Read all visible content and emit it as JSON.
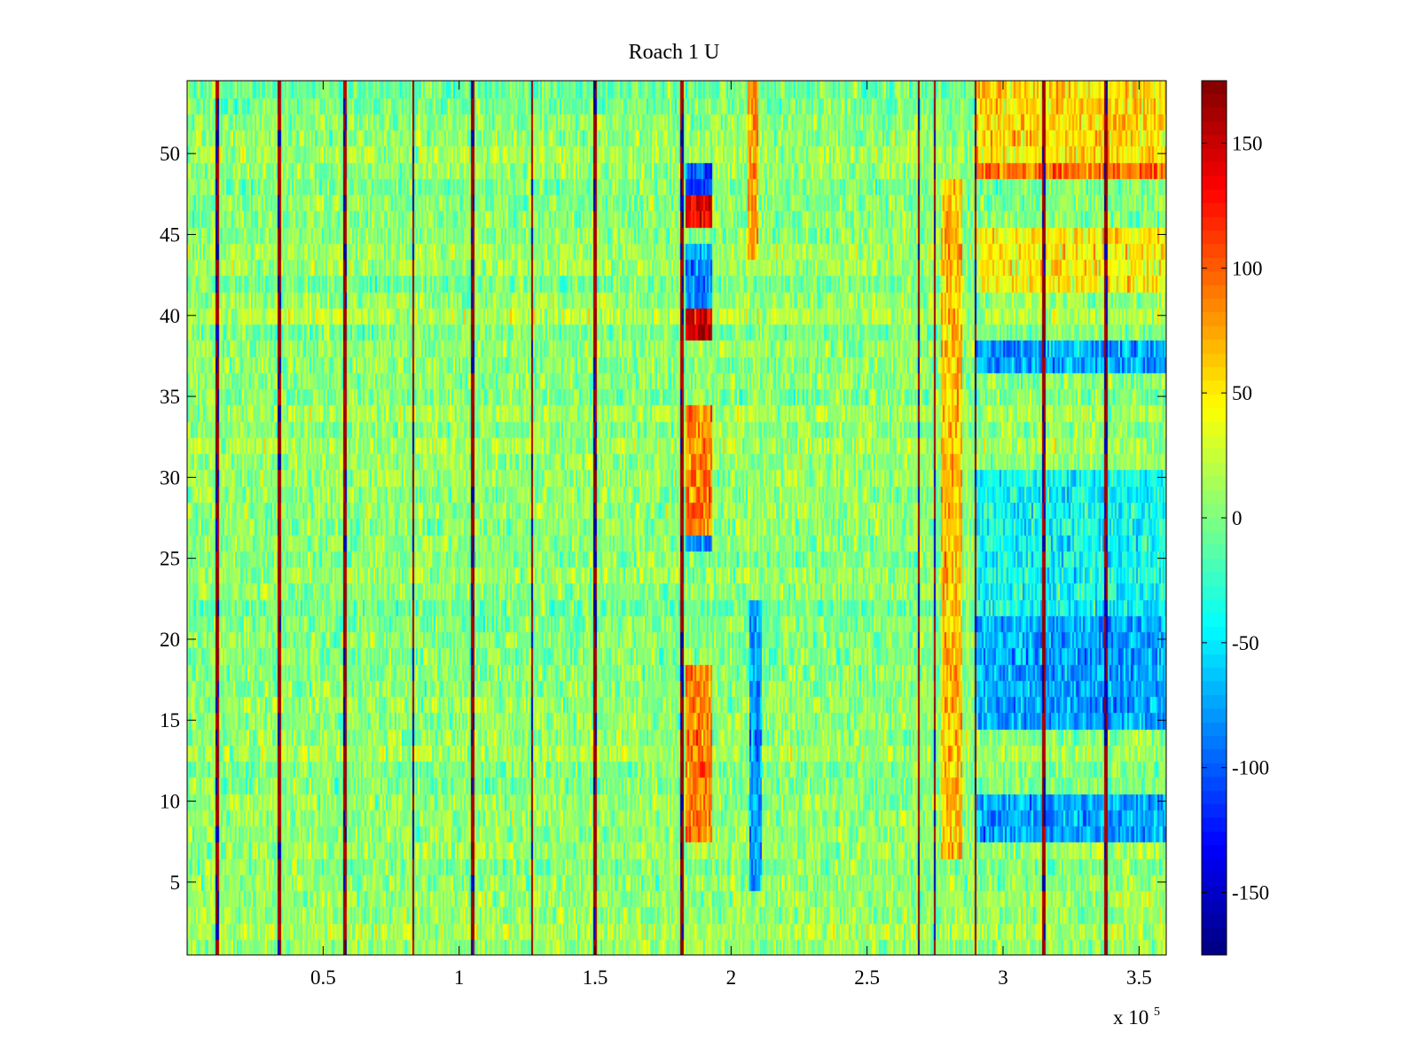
{
  "chart_data": {
    "type": "heatmap",
    "title": "Roach 1 U",
    "xlabel": "",
    "ylabel": "",
    "x_multiplier_label": "x 10",
    "x_multiplier_exponent": "5",
    "xlim": [
      0,
      3.6
    ],
    "ylim": [
      0.5,
      54.5
    ],
    "xticks": [
      0.5,
      1,
      1.5,
      2,
      2.5,
      3,
      3.5
    ],
    "xtick_labels": [
      "0.5",
      "1",
      "1.5",
      "2",
      "2.5",
      "3",
      "3.5"
    ],
    "yticks": [
      5,
      10,
      15,
      20,
      25,
      30,
      35,
      40,
      45,
      50
    ],
    "ytick_labels": [
      "5",
      "10",
      "15",
      "20",
      "25",
      "30",
      "35",
      "40",
      "45",
      "50"
    ],
    "n_rows": 54,
    "colormap": "jet",
    "clim": [
      -175,
      175
    ],
    "colorbar_ticks": [
      150,
      100,
      50,
      0,
      -50,
      -100,
      -150
    ],
    "colorbar_tick_labels": [
      "150",
      "100",
      "50",
      "0",
      "-50",
      "-100",
      "-150"
    ],
    "background_mean": 5,
    "vertical_event_lines_x": [
      0.11,
      0.34,
      0.58,
      0.83,
      1.05,
      1.27,
      1.5,
      1.82,
      2.69,
      2.75,
      2.9,
      3.15,
      3.38
    ],
    "features": [
      {
        "x": [
          1.83,
          1.93
        ],
        "rows": [
          [
            48,
            49
          ]
        ],
        "value": -110
      },
      {
        "x": [
          1.83,
          1.93
        ],
        "rows": [
          [
            46,
            47
          ]
        ],
        "value": 140
      },
      {
        "x": [
          1.83,
          1.93
        ],
        "rows": [
          [
            41,
            44
          ]
        ],
        "value": -85
      },
      {
        "x": [
          1.83,
          1.93
        ],
        "rows": [
          [
            39,
            40
          ]
        ],
        "value": 150
      },
      {
        "x": [
          1.83,
          1.93
        ],
        "rows": [
          [
            26,
            27
          ]
        ],
        "value": -85
      },
      {
        "x": [
          1.83,
          1.93
        ],
        "rows": [
          [
            27,
            34
          ]
        ],
        "value": 85
      },
      {
        "x": [
          1.83,
          1.93
        ],
        "rows": [
          [
            8,
            18
          ]
        ],
        "value": 90
      },
      {
        "x": [
          2.06,
          2.1
        ],
        "rows": [
          [
            44,
            54
          ]
        ],
        "value": 75
      },
      {
        "x": [
          2.07,
          2.11
        ],
        "rows": [
          [
            5,
            22
          ]
        ],
        "value": -75
      },
      {
        "x": [
          2.77,
          2.85
        ],
        "rows": [
          [
            7,
            48
          ]
        ],
        "value": 65
      },
      {
        "x": [
          2.9,
          3.6
        ],
        "rows": [
          [
            49,
            50
          ]
        ],
        "value": 95
      },
      {
        "x": [
          2.9,
          3.6
        ],
        "rows": [
          [
            50,
            54
          ]
        ],
        "value": 55
      },
      {
        "x": [
          2.9,
          3.6
        ],
        "rows": [
          [
            42,
            45
          ]
        ],
        "value": 45
      },
      {
        "x": [
          2.9,
          3.6
        ],
        "rows": [
          [
            37,
            38
          ],
          [
            18,
            21
          ],
          [
            15,
            17
          ],
          [
            8,
            10
          ]
        ],
        "value": -75
      },
      {
        "x": [
          2.9,
          3.6
        ],
        "rows": [
          [
            22,
            30
          ]
        ],
        "value": -40
      }
    ]
  }
}
